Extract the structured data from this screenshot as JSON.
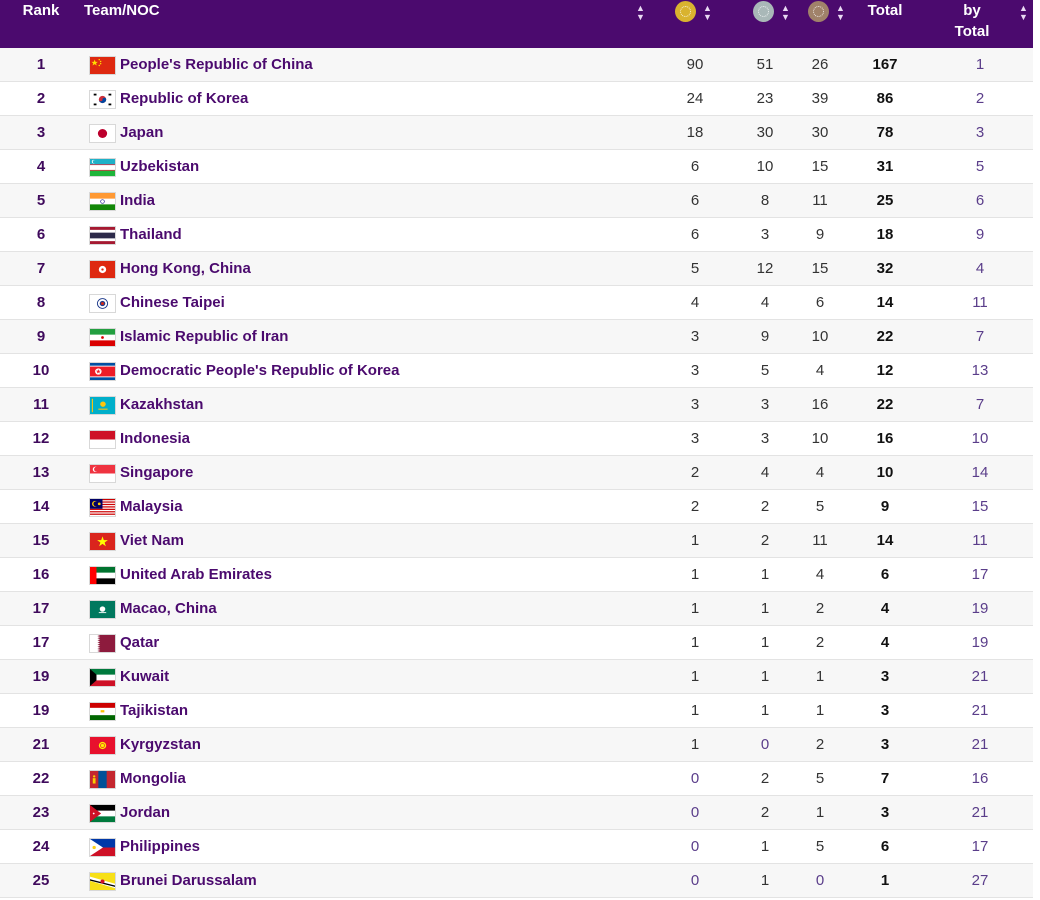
{
  "header": {
    "rank": "Rank",
    "team": "Team/NOC",
    "total": "Total",
    "by_total_line1": "by",
    "by_total_line2": "Total",
    "sort_icon": "sort-arrows-icon",
    "gold_icon": "gold-medal-icon",
    "silver_icon": "silver-medal-icon",
    "bronze_icon": "bronze-medal-icon"
  },
  "colors": {
    "header_bg": "#4b0a6e",
    "team_text": "#4b0a6e",
    "gold": "#d9b32f",
    "silver": "#a9b8b8",
    "bronze": "#a0826a"
  },
  "rows": [
    {
      "rank": "1",
      "team": "People's Republic of China",
      "flag": "china",
      "gold": "90",
      "silver": "51",
      "bronze": "26",
      "total": "167",
      "by_total": "1"
    },
    {
      "rank": "2",
      "team": "Republic of Korea",
      "flag": "korea",
      "gold": "24",
      "silver": "23",
      "bronze": "39",
      "total": "86",
      "by_total": "2"
    },
    {
      "rank": "3",
      "team": "Japan",
      "flag": "japan",
      "gold": "18",
      "silver": "30",
      "bronze": "30",
      "total": "78",
      "by_total": "3"
    },
    {
      "rank": "4",
      "team": "Uzbekistan",
      "flag": "uzbekistan",
      "gold": "6",
      "silver": "10",
      "bronze": "15",
      "total": "31",
      "by_total": "5"
    },
    {
      "rank": "5",
      "team": "India",
      "flag": "india",
      "gold": "6",
      "silver": "8",
      "bronze": "11",
      "total": "25",
      "by_total": "6"
    },
    {
      "rank": "6",
      "team": "Thailand",
      "flag": "thailand",
      "gold": "6",
      "silver": "3",
      "bronze": "9",
      "total": "18",
      "by_total": "9"
    },
    {
      "rank": "7",
      "team": "Hong Kong, China",
      "flag": "hongkong",
      "gold": "5",
      "silver": "12",
      "bronze": "15",
      "total": "32",
      "by_total": "4"
    },
    {
      "rank": "8",
      "team": "Chinese Taipei",
      "flag": "taipei",
      "gold": "4",
      "silver": "4",
      "bronze": "6",
      "total": "14",
      "by_total": "11"
    },
    {
      "rank": "9",
      "team": "Islamic Republic of Iran",
      "flag": "iran",
      "gold": "3",
      "silver": "9",
      "bronze": "10",
      "total": "22",
      "by_total": "7"
    },
    {
      "rank": "10",
      "team": "Democratic People's Republic of Korea",
      "flag": "dprk",
      "gold": "3",
      "silver": "5",
      "bronze": "4",
      "total": "12",
      "by_total": "13"
    },
    {
      "rank": "11",
      "team": "Kazakhstan",
      "flag": "kazakhstan",
      "gold": "3",
      "silver": "3",
      "bronze": "16",
      "total": "22",
      "by_total": "7"
    },
    {
      "rank": "12",
      "team": "Indonesia",
      "flag": "indonesia",
      "gold": "3",
      "silver": "3",
      "bronze": "10",
      "total": "16",
      "by_total": "10"
    },
    {
      "rank": "13",
      "team": "Singapore",
      "flag": "singapore",
      "gold": "2",
      "silver": "4",
      "bronze": "4",
      "total": "10",
      "by_total": "14"
    },
    {
      "rank": "14",
      "team": "Malaysia",
      "flag": "malaysia",
      "gold": "2",
      "silver": "2",
      "bronze": "5",
      "total": "9",
      "by_total": "15"
    },
    {
      "rank": "15",
      "team": "Viet Nam",
      "flag": "vietnam",
      "gold": "1",
      "silver": "2",
      "bronze": "11",
      "total": "14",
      "by_total": "11"
    },
    {
      "rank": "16",
      "team": "United Arab Emirates",
      "flag": "uae",
      "gold": "1",
      "silver": "1",
      "bronze": "4",
      "total": "6",
      "by_total": "17"
    },
    {
      "rank": "17",
      "team": "Macao, China",
      "flag": "macao",
      "gold": "1",
      "silver": "1",
      "bronze": "2",
      "total": "4",
      "by_total": "19"
    },
    {
      "rank": "17",
      "team": "Qatar",
      "flag": "qatar",
      "gold": "1",
      "silver": "1",
      "bronze": "2",
      "total": "4",
      "by_total": "19"
    },
    {
      "rank": "19",
      "team": "Kuwait",
      "flag": "kuwait",
      "gold": "1",
      "silver": "1",
      "bronze": "1",
      "total": "3",
      "by_total": "21"
    },
    {
      "rank": "19",
      "team": "Tajikistan",
      "flag": "tajikistan",
      "gold": "1",
      "silver": "1",
      "bronze": "1",
      "total": "3",
      "by_total": "21"
    },
    {
      "rank": "21",
      "team": "Kyrgyzstan",
      "flag": "kyrgyzstan",
      "gold": "1",
      "silver": "0",
      "bronze": "2",
      "total": "3",
      "by_total": "21"
    },
    {
      "rank": "22",
      "team": "Mongolia",
      "flag": "mongolia",
      "gold": "0",
      "silver": "2",
      "bronze": "5",
      "total": "7",
      "by_total": "16"
    },
    {
      "rank": "23",
      "team": "Jordan",
      "flag": "jordan",
      "gold": "0",
      "silver": "2",
      "bronze": "1",
      "total": "3",
      "by_total": "21"
    },
    {
      "rank": "24",
      "team": "Philippines",
      "flag": "philippines",
      "gold": "0",
      "silver": "1",
      "bronze": "5",
      "total": "6",
      "by_total": "17"
    },
    {
      "rank": "25",
      "team": "Brunei Darussalam",
      "flag": "brunei",
      "gold": "0",
      "silver": "1",
      "bronze": "0",
      "total": "1",
      "by_total": "27"
    }
  ]
}
